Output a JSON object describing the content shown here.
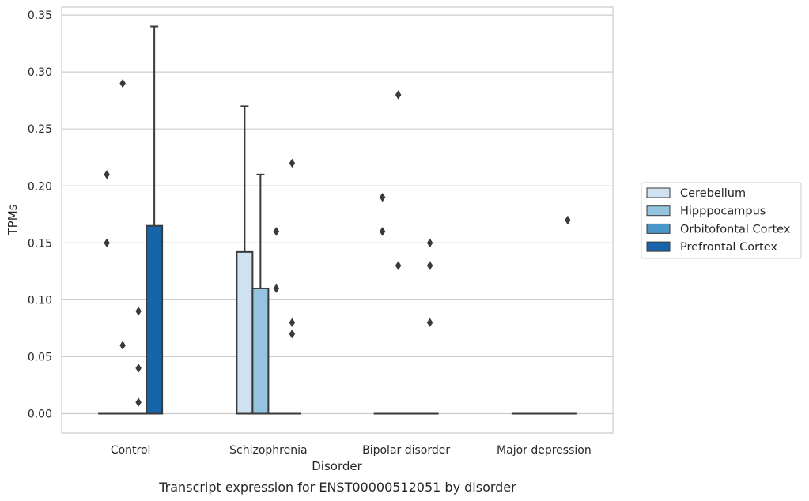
{
  "chart_data": {
    "type": "box",
    "xlabel": "Disorder",
    "ylabel": "TPMs",
    "caption": "Transcript expression for ENST00000512051 by disorder",
    "ylim": [
      -0.017,
      0.357
    ],
    "yticks": [
      "0.00",
      "0.05",
      "0.10",
      "0.15",
      "0.20",
      "0.25",
      "0.30",
      "0.35"
    ],
    "grid": "horizontal",
    "legend_position": "right",
    "categories": [
      "Control",
      "Schizophrenia",
      "Bipolar disorder",
      "Major depression"
    ],
    "series": [
      {
        "name": "Cerebellum",
        "color": "#d0e1f2",
        "boxes": [
          {
            "category": "Control",
            "q1": 0,
            "median": 0,
            "q3": 0,
            "whisker_low": 0,
            "whisker_high": 0,
            "outliers": [
              0.21,
              0.15
            ]
          },
          {
            "category": "Schizophrenia",
            "q1": 0,
            "median": 0,
            "q3": 0.142,
            "whisker_low": 0,
            "whisker_high": 0.27,
            "outliers": []
          },
          {
            "category": "Bipolar disorder",
            "q1": 0,
            "median": 0,
            "q3": 0,
            "whisker_low": 0,
            "whisker_high": 0,
            "outliers": [
              0.19,
              0.16
            ]
          },
          {
            "category": "Major depression",
            "q1": 0,
            "median": 0,
            "q3": 0,
            "whisker_low": 0,
            "whisker_high": 0,
            "outliers": []
          }
        ]
      },
      {
        "name": "Hipppocampus",
        "color": "#94c4df",
        "boxes": [
          {
            "category": "Control",
            "q1": 0,
            "median": 0,
            "q3": 0,
            "whisker_low": 0,
            "whisker_high": 0,
            "outliers": [
              0.29,
              0.06
            ]
          },
          {
            "category": "Schizophrenia",
            "q1": 0,
            "median": 0,
            "q3": 0.11,
            "whisker_low": 0,
            "whisker_high": 0.21,
            "outliers": []
          },
          {
            "category": "Bipolar disorder",
            "q1": 0,
            "median": 0,
            "q3": 0,
            "whisker_low": 0,
            "whisker_high": 0,
            "outliers": [
              0.28,
              0.13
            ]
          },
          {
            "category": "Major depression",
            "q1": 0,
            "median": 0,
            "q3": 0,
            "whisker_low": 0,
            "whisker_high": 0,
            "outliers": []
          }
        ]
      },
      {
        "name": "Orbitofontal Cortex",
        "color": "#4a98c9",
        "boxes": [
          {
            "category": "Control",
            "q1": 0,
            "median": 0,
            "q3": 0,
            "whisker_low": 0,
            "whisker_high": 0,
            "outliers": [
              0.09,
              0.04,
              0.01
            ]
          },
          {
            "category": "Schizophrenia",
            "q1": 0,
            "median": 0,
            "q3": 0,
            "whisker_low": 0,
            "whisker_high": 0,
            "outliers": [
              0.16,
              0.11
            ]
          },
          {
            "category": "Bipolar disorder",
            "q1": 0,
            "median": 0,
            "q3": 0,
            "whisker_low": 0,
            "whisker_high": 0,
            "outliers": []
          },
          {
            "category": "Major depression",
            "q1": 0,
            "median": 0,
            "q3": 0,
            "whisker_low": 0,
            "whisker_high": 0,
            "outliers": []
          }
        ]
      },
      {
        "name": "Prefrontal Cortex",
        "color": "#1764ab",
        "boxes": [
          {
            "category": "Control",
            "q1": 0,
            "median": 0,
            "q3": 0.165,
            "whisker_low": 0,
            "whisker_high": 0.34,
            "outliers": []
          },
          {
            "category": "Schizophrenia",
            "q1": 0,
            "median": 0,
            "q3": 0,
            "whisker_low": 0,
            "whisker_high": 0,
            "outliers": [
              0.22,
              0.08,
              0.07
            ]
          },
          {
            "category": "Bipolar disorder",
            "q1": 0,
            "median": 0,
            "q3": 0,
            "whisker_low": 0,
            "whisker_high": 0,
            "outliers": [
              0.15,
              0.13,
              0.08
            ]
          },
          {
            "category": "Major depression",
            "q1": 0,
            "median": 0,
            "q3": 0,
            "whisker_low": 0,
            "whisker_high": 0,
            "outliers": [
              0.17
            ]
          }
        ]
      }
    ]
  }
}
